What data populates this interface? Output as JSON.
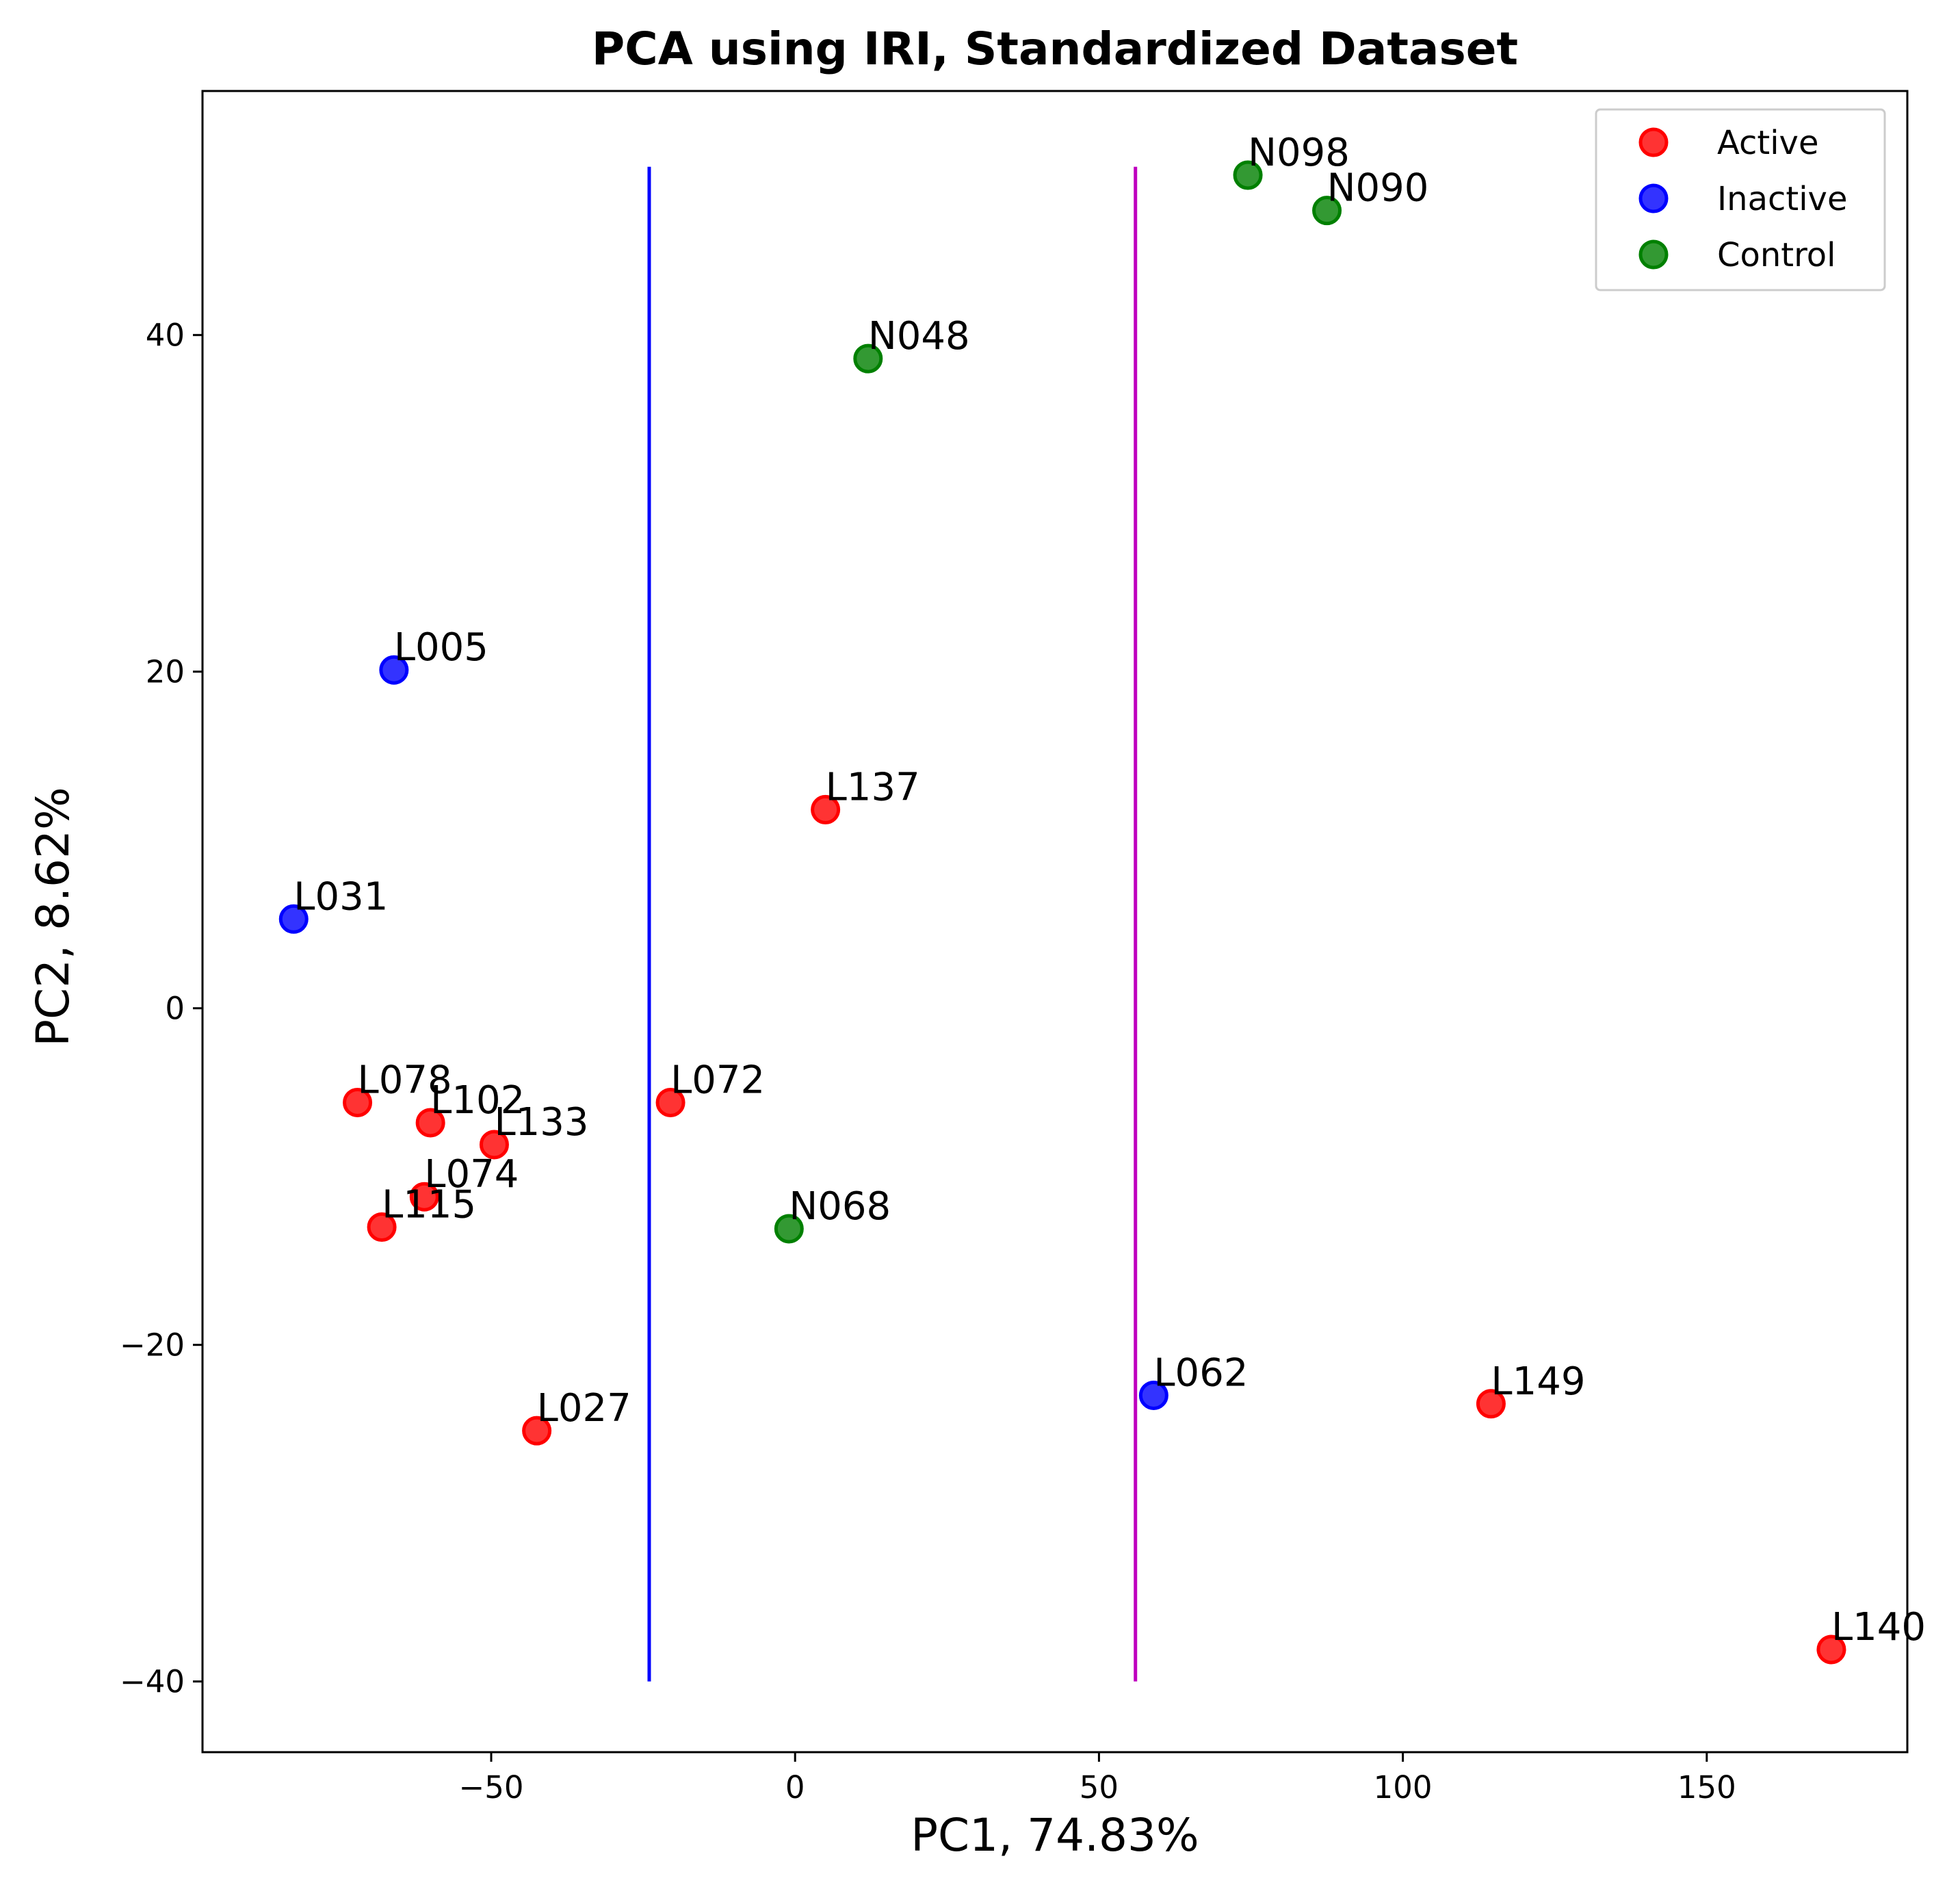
{
  "chart_data": {
    "type": "scatter",
    "title": "PCA using IRI, Standardized Dataset",
    "xlabel": "PC1, 74.83%",
    "ylabel": "PC2, 8.62%",
    "xlim": [
      -97.5,
      183
    ],
    "ylim": [
      -44.2,
      54.5
    ],
    "x_ticks": [
      -50,
      0,
      50,
      100,
      150
    ],
    "x_tick_labels": [
      "−50",
      "0",
      "50",
      "100",
      "150"
    ],
    "y_ticks": [
      -40,
      -20,
      0,
      20,
      40
    ],
    "y_tick_labels": [
      "−40",
      "−20",
      "0",
      "20",
      "40"
    ],
    "grid": false,
    "legend_position": "top-right",
    "series": [
      {
        "name": "Active",
        "color": "#ff0000",
        "points": [
          {
            "label": "L137",
            "x": 5,
            "y": 11.8
          },
          {
            "label": "L078",
            "x": -72,
            "y": -5.6
          },
          {
            "label": "L102",
            "x": -60,
            "y": -6.8
          },
          {
            "label": "L133",
            "x": -49.5,
            "y": -8.1
          },
          {
            "label": "L072",
            "x": -20.5,
            "y": -5.6
          },
          {
            "label": "L074",
            "x": -61,
            "y": -11.2
          },
          {
            "label": "L115",
            "x": -68,
            "y": -13
          },
          {
            "label": "L027",
            "x": -42.5,
            "y": -25.1
          },
          {
            "label": "L149",
            "x": 114.5,
            "y": -23.5
          },
          {
            "label": "L140",
            "x": 170.5,
            "y": -38.1
          }
        ]
      },
      {
        "name": "Inactive",
        "color": "#0000ff",
        "points": [
          {
            "label": "L005",
            "x": -66,
            "y": 20.1
          },
          {
            "label": "L031",
            "x": -82.5,
            "y": 5.3
          },
          {
            "label": "L062",
            "x": 59,
            "y": -23
          }
        ]
      },
      {
        "name": "Control",
        "color": "#008000",
        "points": [
          {
            "label": "N098",
            "x": 74.5,
            "y": 49.5
          },
          {
            "label": "N090",
            "x": 87.5,
            "y": 47.4
          },
          {
            "label": "N048",
            "x": 12,
            "y": 38.6
          },
          {
            "label": "N068",
            "x": -1,
            "y": -13.1
          }
        ]
      }
    ],
    "vertical_lines": [
      {
        "x": -24,
        "y_range": [
          -40,
          50
        ],
        "color": "#0000ff"
      },
      {
        "x": 56,
        "y_range": [
          -40,
          50
        ],
        "color": "#bf00bf"
      }
    ]
  }
}
